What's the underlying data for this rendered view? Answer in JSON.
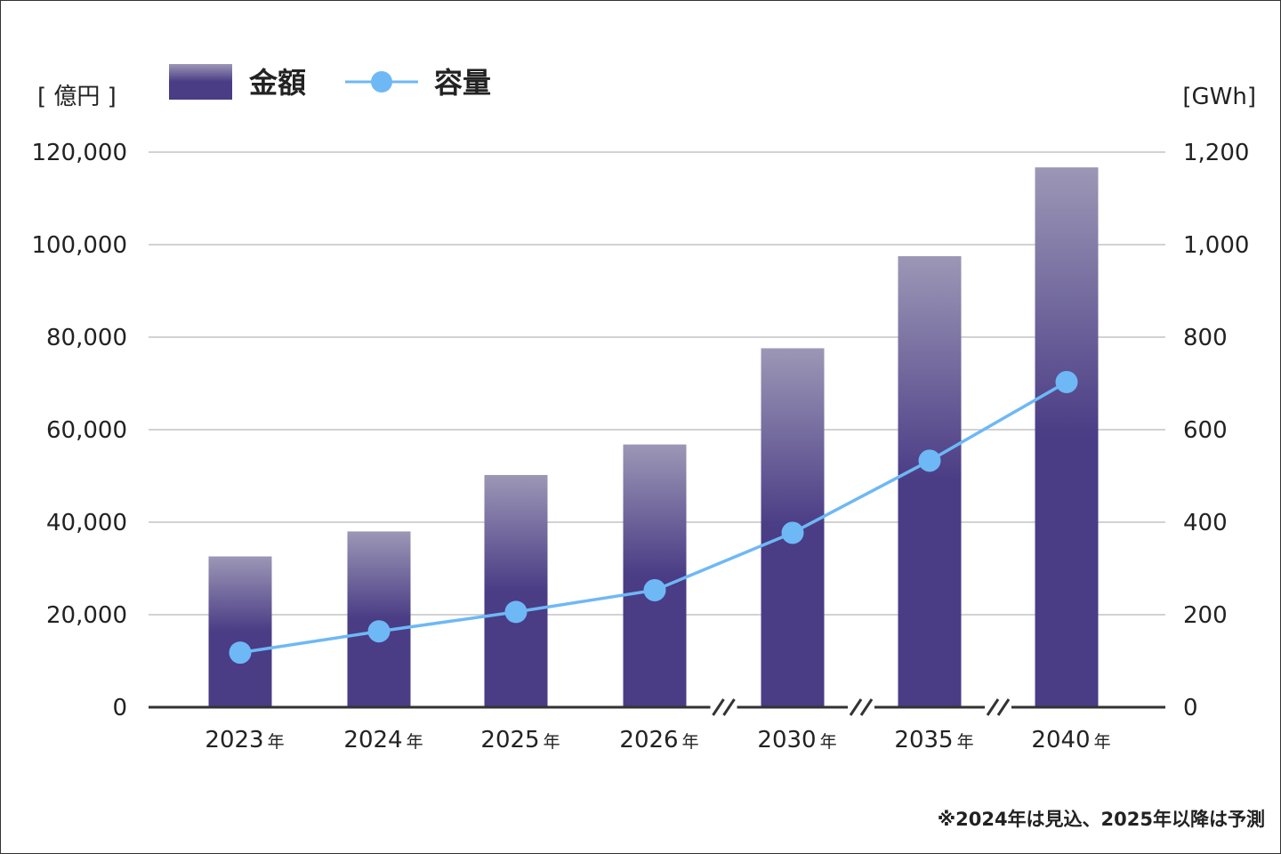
{
  "chart_data": {
    "type": "bar+line",
    "categories": [
      "2023年",
      "2024年",
      "2025年",
      "2026年",
      "2030年",
      "2035年",
      "2040年"
    ],
    "x_year_labels": [
      "2023",
      "2024",
      "2025",
      "2026",
      "2030",
      "2035",
      "2040"
    ],
    "x_year_suffix": "年",
    "series": [
      {
        "name": "金額",
        "type": "bar",
        "axis": "left",
        "values": [
          32600,
          38000,
          50200,
          56800,
          77600,
          97500,
          116700
        ]
      },
      {
        "name": "容量",
        "type": "line",
        "axis": "right",
        "values": [
          118,
          164,
          206,
          253,
          377,
          533,
          703
        ]
      }
    ],
    "left_axis": {
      "unit_label": "[ 億円 ]",
      "ylim": [
        0,
        120000
      ],
      "ticks": [
        "0",
        "20,000",
        "40,000",
        "60,000",
        "80,000",
        "100,000",
        "120,000"
      ]
    },
    "right_axis": {
      "unit_label": "[GWh]",
      "ylim": [
        0,
        1200
      ],
      "ticks": [
        "0",
        "200",
        "400",
        "600",
        "800",
        "1,000",
        "1,200"
      ]
    },
    "axis_breaks_after_index": [
      3,
      4,
      5
    ],
    "grid": true,
    "legend_position": "top-left",
    "footnote": "※2024年は見込、2025年以降は予測"
  },
  "colors": {
    "bar_solid": "#4a3c85",
    "bar_top": "#9c97b6",
    "line": "#6eb8f5",
    "gridline": "#c4c4c4",
    "axis": "#333333",
    "text": "#222222"
  }
}
